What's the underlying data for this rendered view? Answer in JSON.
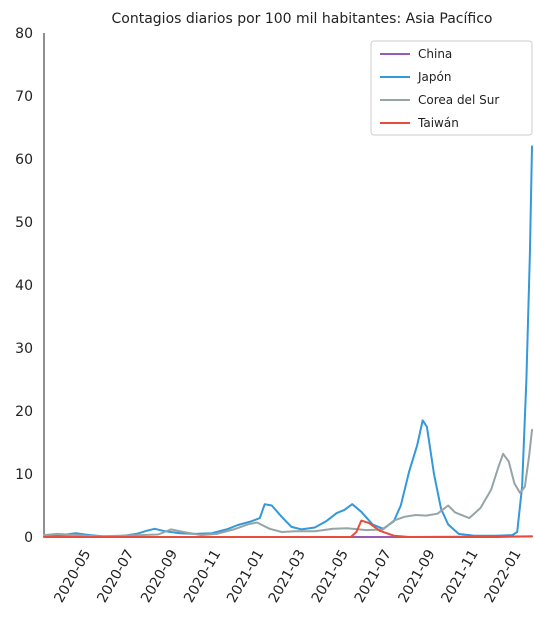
{
  "chart_data": {
    "type": "line",
    "title": "Contagios diarios por 100 mil habitantes: Asia Pacífico",
    "xlabel": "",
    "ylabel": "",
    "xlim": [
      "2020-03-01",
      "2022-01-22"
    ],
    "ylim": [
      0,
      80
    ],
    "y_ticks": [
      0,
      10,
      20,
      30,
      40,
      50,
      60,
      70,
      80
    ],
    "x_ticks": [
      "2020-05",
      "2020-07",
      "2020-09",
      "2020-11",
      "2021-01",
      "2021-03",
      "2021-05",
      "2021-07",
      "2021-09",
      "2021-11",
      "2022-01"
    ],
    "grid": false,
    "legend_position": "top-right",
    "series": [
      {
        "name": "China",
        "color": "#9b59b6",
        "points": [
          [
            "2020-03-01",
            0.1
          ],
          [
            "2020-06-01",
            0.0
          ],
          [
            "2020-09-01",
            0.0
          ],
          [
            "2020-12-01",
            0.0
          ],
          [
            "2021-03-01",
            0.0
          ],
          [
            "2021-06-01",
            0.0
          ],
          [
            "2021-09-01",
            0.0
          ],
          [
            "2021-12-01",
            0.0
          ],
          [
            "2022-01-22",
            0.1
          ]
        ]
      },
      {
        "name": "Japón",
        "color": "#3498db",
        "points": [
          [
            "2020-03-01",
            0.1
          ],
          [
            "2020-04-01",
            0.4
          ],
          [
            "2020-04-15",
            0.6
          ],
          [
            "2020-05-05",
            0.3
          ],
          [
            "2020-05-25",
            0.1
          ],
          [
            "2020-06-15",
            0.1
          ],
          [
            "2020-07-10",
            0.5
          ],
          [
            "2020-07-25",
            1.0
          ],
          [
            "2020-08-05",
            1.3
          ],
          [
            "2020-08-20",
            0.9
          ],
          [
            "2020-09-10",
            0.6
          ],
          [
            "2020-10-01",
            0.5
          ],
          [
            "2020-10-25",
            0.6
          ],
          [
            "2020-11-15",
            1.2
          ],
          [
            "2020-12-01",
            1.9
          ],
          [
            "2020-12-20",
            2.5
          ],
          [
            "2021-01-01",
            3.0
          ],
          [
            "2021-01-08",
            5.2
          ],
          [
            "2021-01-18",
            5.0
          ],
          [
            "2021-02-01",
            3.2
          ],
          [
            "2021-02-15",
            1.6
          ],
          [
            "2021-03-01",
            1.2
          ],
          [
            "2021-03-20",
            1.5
          ],
          [
            "2021-04-05",
            2.5
          ],
          [
            "2021-04-20",
            3.8
          ],
          [
            "2021-05-01",
            4.3
          ],
          [
            "2021-05-12",
            5.2
          ],
          [
            "2021-05-25",
            4.0
          ],
          [
            "2021-06-10",
            2.0
          ],
          [
            "2021-06-25",
            1.3
          ],
          [
            "2021-07-10",
            2.5
          ],
          [
            "2021-07-20",
            5.0
          ],
          [
            "2021-08-01",
            10.5
          ],
          [
            "2021-08-12",
            14.5
          ],
          [
            "2021-08-20",
            18.5
          ],
          [
            "2021-08-26",
            17.5
          ],
          [
            "2021-09-05",
            10.0
          ],
          [
            "2021-09-15",
            4.5
          ],
          [
            "2021-09-25",
            2.0
          ],
          [
            "2021-10-10",
            0.5
          ],
          [
            "2021-11-01",
            0.2
          ],
          [
            "2021-12-01",
            0.2
          ],
          [
            "2021-12-25",
            0.3
          ],
          [
            "2022-01-01",
            0.8
          ],
          [
            "2022-01-08",
            8.0
          ],
          [
            "2022-01-14",
            25.0
          ],
          [
            "2022-01-19",
            45.0
          ],
          [
            "2022-01-22",
            62.0
          ]
        ]
      },
      {
        "name": "Corea del Sur",
        "color": "#95a5a6",
        "points": [
          [
            "2020-03-01",
            0.3
          ],
          [
            "2020-03-20",
            0.5
          ],
          [
            "2020-04-15",
            0.3
          ],
          [
            "2020-05-15",
            0.1
          ],
          [
            "2020-06-15",
            0.2
          ],
          [
            "2020-07-15",
            0.3
          ],
          [
            "2020-08-10",
            0.4
          ],
          [
            "2020-08-28",
            1.2
          ],
          [
            "2020-09-15",
            0.8
          ],
          [
            "2020-10-10",
            0.3
          ],
          [
            "2020-11-01",
            0.5
          ],
          [
            "2020-11-25",
            1.2
          ],
          [
            "2020-12-15",
            2.0
          ],
          [
            "2020-12-28",
            2.3
          ],
          [
            "2021-01-15",
            1.3
          ],
          [
            "2021-02-01",
            0.8
          ],
          [
            "2021-02-20",
            0.9
          ],
          [
            "2021-03-20",
            0.9
          ],
          [
            "2021-04-15",
            1.3
          ],
          [
            "2021-05-05",
            1.4
          ],
          [
            "2021-06-01",
            1.1
          ],
          [
            "2021-06-25",
            1.2
          ],
          [
            "2021-07-10",
            2.6
          ],
          [
            "2021-07-25",
            3.2
          ],
          [
            "2021-08-10",
            3.5
          ],
          [
            "2021-08-25",
            3.4
          ],
          [
            "2021-09-10",
            3.7
          ],
          [
            "2021-09-25",
            5.0
          ],
          [
            "2021-10-05",
            3.9
          ],
          [
            "2021-10-25",
            3.0
          ],
          [
            "2021-11-10",
            4.6
          ],
          [
            "2021-11-25",
            7.5
          ],
          [
            "2021-12-05",
            11.0
          ],
          [
            "2021-12-12",
            13.2
          ],
          [
            "2021-12-20",
            12.0
          ],
          [
            "2021-12-28",
            8.5
          ],
          [
            "2022-01-05",
            7.0
          ],
          [
            "2022-01-12",
            8.0
          ],
          [
            "2022-01-18",
            13.0
          ],
          [
            "2022-01-22",
            17.0
          ]
        ]
      },
      {
        "name": "Taiwán",
        "color": "#e74c3c",
        "points": [
          [
            "2020-03-01",
            0.0
          ],
          [
            "2021-05-10",
            0.0
          ],
          [
            "2021-05-18",
            0.8
          ],
          [
            "2021-05-25",
            2.6
          ],
          [
            "2021-06-05",
            2.2
          ],
          [
            "2021-06-20",
            1.0
          ],
          [
            "2021-07-10",
            0.2
          ],
          [
            "2021-08-01",
            0.0
          ],
          [
            "2022-01-22",
            0.1
          ]
        ]
      }
    ]
  }
}
